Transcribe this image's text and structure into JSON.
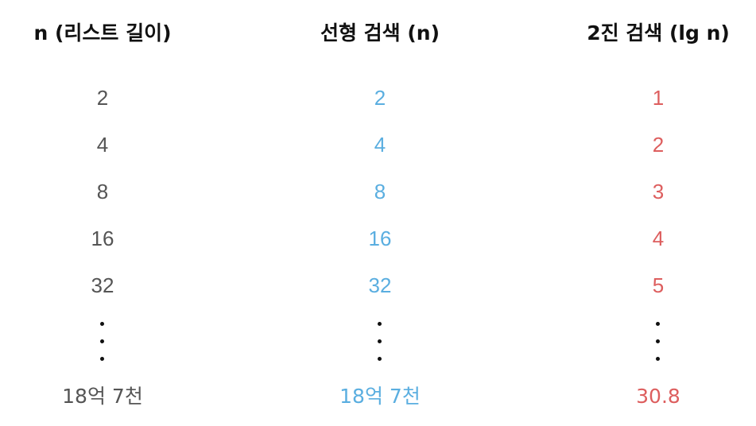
{
  "columns": [
    {
      "header": "n (리스트 길이)",
      "color": "#555555",
      "values": [
        "2",
        "4",
        "8",
        "16",
        "32"
      ],
      "ellipsis": "⋮",
      "last_value": "18억 7천"
    },
    {
      "header": "선형 검색 (n)",
      "color": "#5aaee0",
      "values": [
        "2",
        "4",
        "8",
        "16",
        "32"
      ],
      "ellipsis": "⋮",
      "last_value": "18억 7천"
    },
    {
      "header": "2진 검색 (lg n)",
      "color": "#dd5e5e",
      "values": [
        "1",
        "2",
        "3",
        "4",
        "5"
      ],
      "ellipsis": "⋮",
      "last_value": "30.8"
    }
  ]
}
